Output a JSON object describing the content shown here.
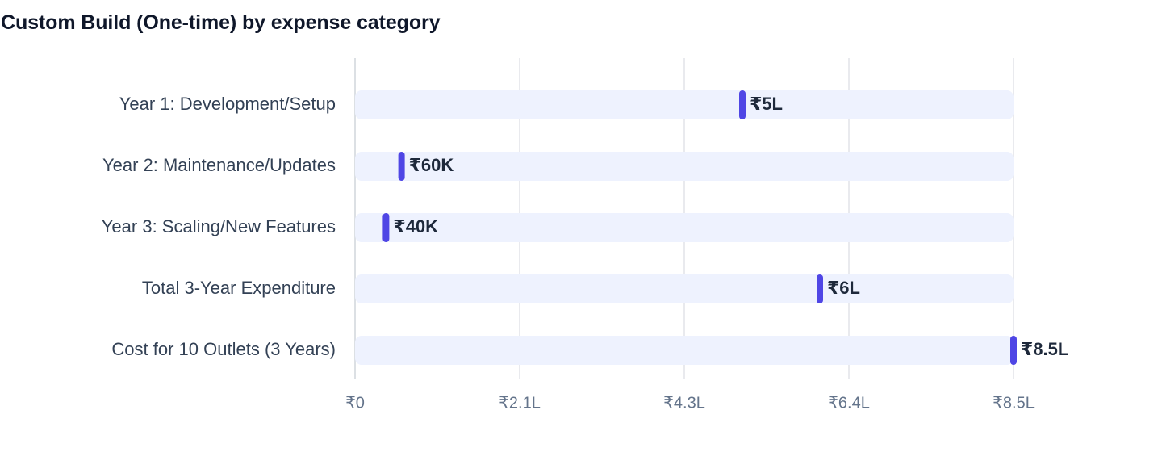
{
  "chart_data": {
    "type": "bar",
    "title": "Custom Build (One-time) by expense category",
    "categories": [
      "Year 1: Development/Setup",
      "Year 2: Maintenance/Updates",
      "Year 3: Scaling/New Features",
      "Total 3-Year Expenditure",
      "Cost for 10 Outlets (3 Years)"
    ],
    "values": [
      500000,
      60000,
      40000,
      600000,
      850000
    ],
    "data_labels": [
      "₹5L",
      "₹60K",
      "₹40K",
      "₹6L",
      "₹8.5L"
    ],
    "orientation": "horizontal",
    "xlim": [
      0,
      850000
    ],
    "xticks": [
      0,
      212500,
      425000,
      637500,
      850000
    ],
    "xtick_labels": [
      "₹0",
      "₹2.1L",
      "₹4.3L",
      "₹6.4L",
      "₹8.5L"
    ],
    "xlabel": "",
    "ylabel": "",
    "grid": true,
    "legend": "none",
    "colors": {
      "marker": "#4f46e5",
      "track": "#eef2fe",
      "grid": "#e2e4e8",
      "axis": "#d1d5db"
    }
  }
}
